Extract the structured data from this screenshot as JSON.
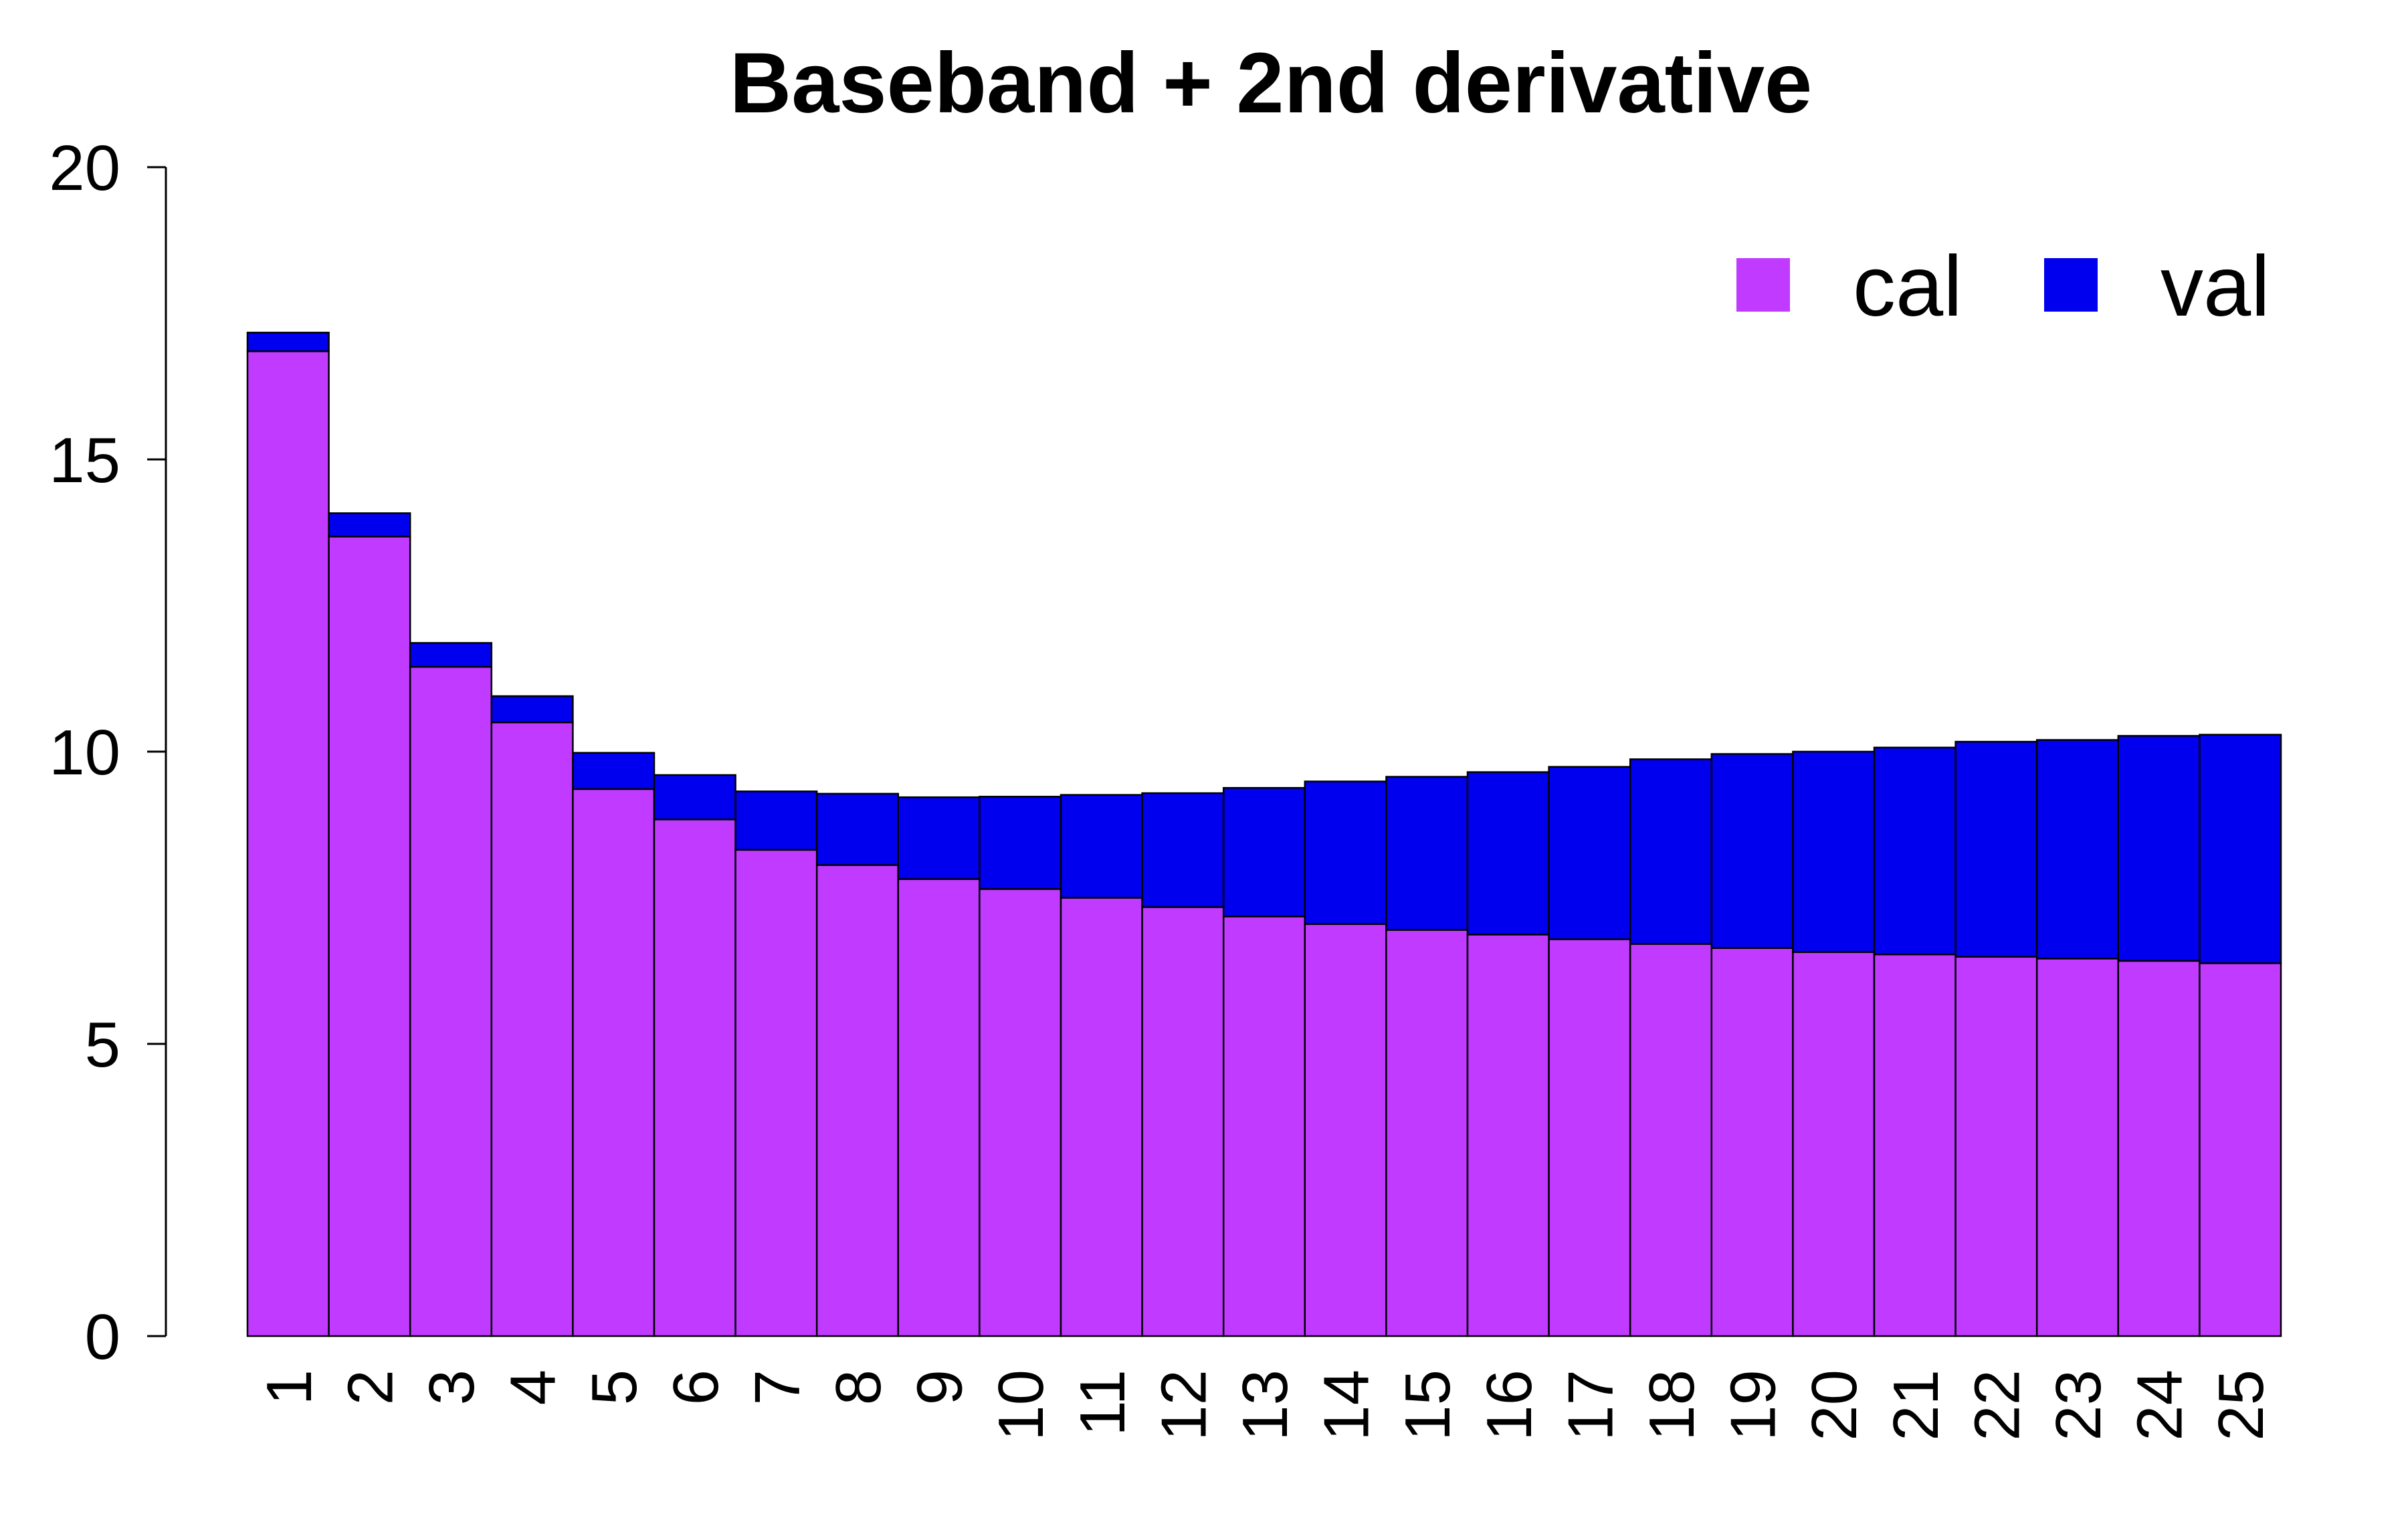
{
  "chart_data": {
    "type": "bar",
    "stacked": true,
    "title": "Baseband + 2nd derivative",
    "xlabel": "",
    "ylabel": "",
    "ylim": [
      0,
      20
    ],
    "yticks": [
      "0",
      "5",
      "10",
      "15",
      "20"
    ],
    "categories": [
      "1",
      "2",
      "3",
      "4",
      "5",
      "6",
      "7",
      "8",
      "9",
      "10",
      "11",
      "12",
      "13",
      "14",
      "15",
      "16",
      "17",
      "18",
      "19",
      "20",
      "21",
      "22",
      "23",
      "24",
      "25"
    ],
    "series": [
      {
        "name": "cal",
        "color": "#c03bff",
        "values": [
          16.85,
          13.68,
          11.45,
          10.5,
          9.36,
          8.84,
          8.32,
          8.06,
          7.82,
          7.65,
          7.5,
          7.34,
          7.18,
          7.05,
          6.95,
          6.87,
          6.79,
          6.71,
          6.64,
          6.57,
          6.53,
          6.49,
          6.46,
          6.42,
          6.38
        ]
      },
      {
        "name": "val",
        "color": "#0000ee",
        "values": [
          0.32,
          0.4,
          0.41,
          0.45,
          0.62,
          0.76,
          1.0,
          1.22,
          1.4,
          1.58,
          1.76,
          1.95,
          2.2,
          2.44,
          2.62,
          2.78,
          2.95,
          3.16,
          3.32,
          3.43,
          3.54,
          3.68,
          3.74,
          3.85,
          3.91
        ]
      }
    ],
    "legend": {
      "position": "top-right",
      "entries": [
        "cal",
        "val"
      ]
    }
  }
}
